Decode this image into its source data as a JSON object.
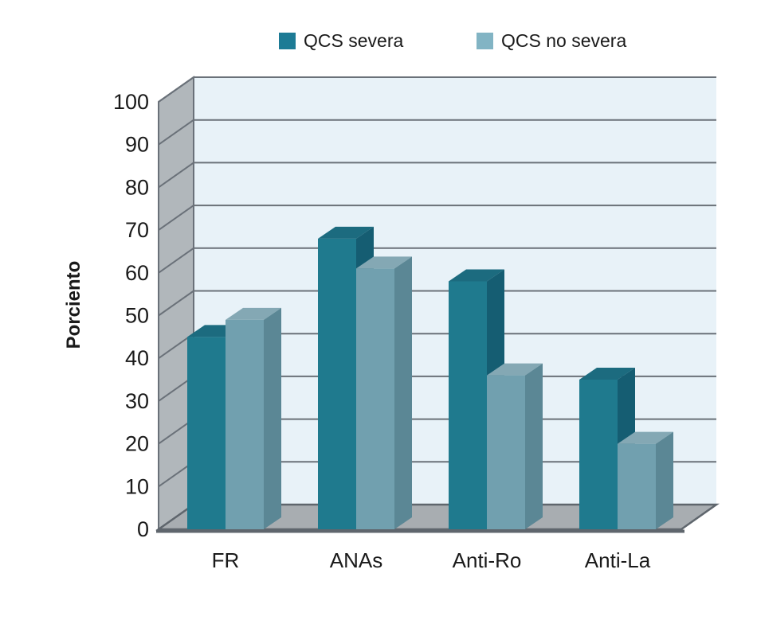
{
  "chart_data": {
    "type": "bar",
    "variant": "3d-column",
    "title": "",
    "categories": [
      "FR",
      "ANAs",
      "Anti-Ro",
      "Anti-La"
    ],
    "series": [
      {
        "name": "QCS severa",
        "values": [
          45,
          68,
          58,
          35
        ],
        "color_front": "#1f7a8e",
        "color_top": "#1c6b7f",
        "color_side": "#155d72",
        "legend_color": "#1d7b95"
      },
      {
        "name": "QCS no severa",
        "values": [
          49,
          61,
          36,
          20
        ],
        "color_front": "#71a0af",
        "color_top": "#84a8b4",
        "color_side": "#5b8795",
        "legend_color": "#82b4c4"
      }
    ],
    "xlabel": "",
    "ylabel": "Porciento",
    "ylim": [
      0,
      100
    ],
    "yticks": [
      0,
      10,
      20,
      30,
      40,
      50,
      60,
      70,
      80,
      90,
      100
    ],
    "grid": true,
    "legend_position": "top"
  },
  "colors": {
    "page_bg": "#ffffff",
    "plot_bg": "#e8f2f8",
    "wall": "#b1b7bb",
    "floor": "#a8adb1",
    "gridline": "#6a7179",
    "edge": "#5f666d",
    "text": "#1a1a1a"
  }
}
